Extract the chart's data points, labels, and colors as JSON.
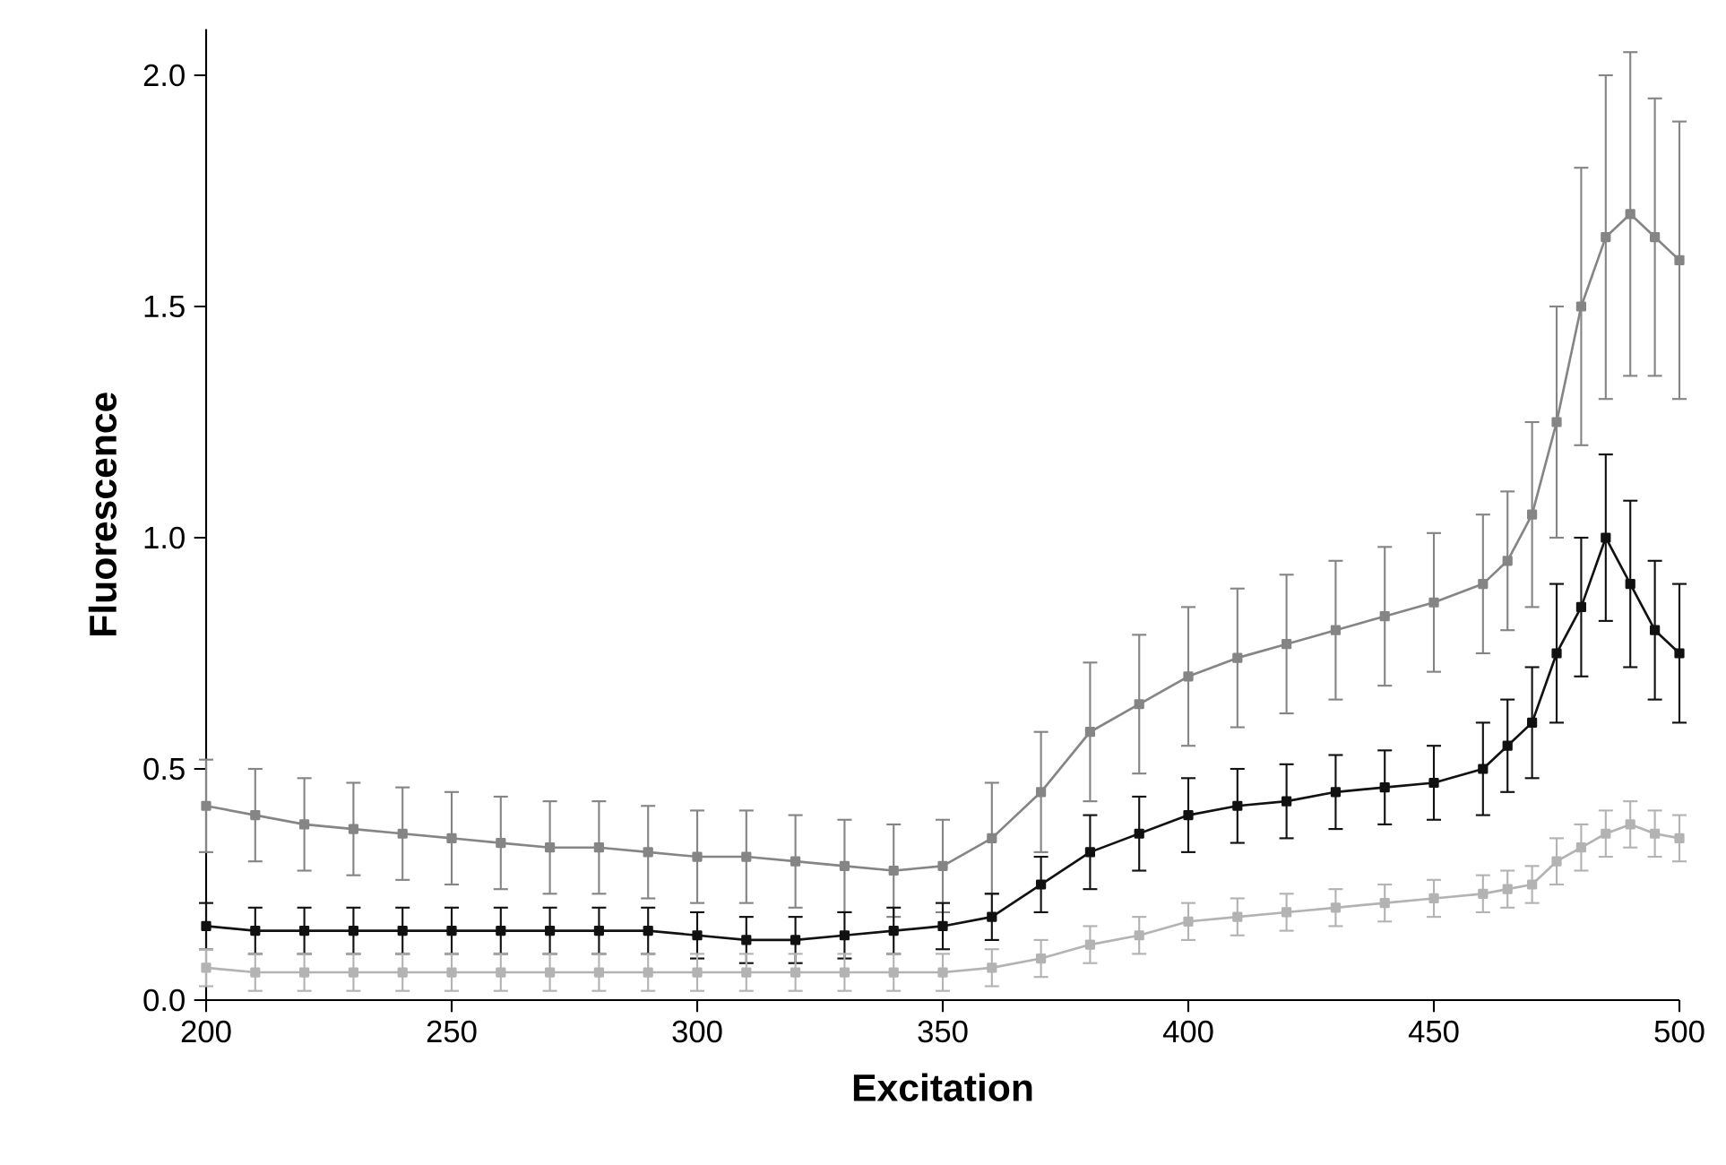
{
  "chart_data": {
    "type": "line",
    "xlabel": "Excitation",
    "ylabel": "Fluorescence",
    "xlim": [
      200,
      500
    ],
    "ylim": [
      0,
      2.1
    ],
    "xticks": [
      200,
      250,
      300,
      350,
      400,
      450,
      500
    ],
    "yticks": [
      {
        "value": 0,
        "label": "0.0"
      },
      0.5,
      {
        "value": 1,
        "label": "1.0"
      },
      1.5,
      {
        "value": 2,
        "label": "2.0"
      }
    ],
    "grid": false,
    "legend": false,
    "marker": "square",
    "line_style": "solid",
    "x": [
      200,
      210,
      220,
      230,
      240,
      250,
      260,
      270,
      280,
      290,
      300,
      310,
      320,
      330,
      340,
      350,
      360,
      370,
      380,
      390,
      400,
      410,
      420,
      430,
      440,
      450,
      460,
      465,
      470,
      475,
      480,
      485,
      490,
      495,
      500
    ],
    "series": [
      {
        "color": "#858585",
        "values": [
          0.42,
          0.4,
          0.38,
          0.37,
          0.36,
          0.35,
          0.34,
          0.33,
          0.33,
          0.32,
          0.31,
          0.31,
          0.3,
          0.29,
          0.28,
          0.29,
          0.35,
          0.45,
          0.58,
          0.64,
          0.7,
          0.74,
          0.77,
          0.8,
          0.83,
          0.86,
          0.9,
          0.95,
          1.05,
          1.25,
          1.5,
          1.65,
          1.7,
          1.65,
          1.6
        ],
        "errors": [
          0.1,
          0.1,
          0.1,
          0.1,
          0.1,
          0.1,
          0.1,
          0.1,
          0.1,
          0.1,
          0.1,
          0.1,
          0.1,
          0.1,
          0.1,
          0.1,
          0.12,
          0.13,
          0.15,
          0.15,
          0.15,
          0.15,
          0.15,
          0.15,
          0.15,
          0.15,
          0.15,
          0.15,
          0.2,
          0.25,
          0.3,
          0.35,
          0.35,
          0.3,
          0.3
        ]
      },
      {
        "color": "#111111",
        "values": [
          0.16,
          0.15,
          0.15,
          0.15,
          0.15,
          0.15,
          0.15,
          0.15,
          0.15,
          0.15,
          0.14,
          0.13,
          0.13,
          0.14,
          0.15,
          0.16,
          0.18,
          0.25,
          0.32,
          0.36,
          0.4,
          0.42,
          0.43,
          0.45,
          0.46,
          0.47,
          0.5,
          0.55,
          0.6,
          0.75,
          0.85,
          1.0,
          0.9,
          0.8,
          0.75
        ],
        "errors": [
          0.05,
          0.05,
          0.05,
          0.05,
          0.05,
          0.05,
          0.05,
          0.05,
          0.05,
          0.05,
          0.05,
          0.05,
          0.05,
          0.05,
          0.05,
          0.05,
          0.05,
          0.06,
          0.08,
          0.08,
          0.08,
          0.08,
          0.08,
          0.08,
          0.08,
          0.08,
          0.1,
          0.1,
          0.12,
          0.15,
          0.15,
          0.18,
          0.18,
          0.15,
          0.15
        ]
      },
      {
        "color": "#b3b3b3",
        "values": [
          0.07,
          0.06,
          0.06,
          0.06,
          0.06,
          0.06,
          0.06,
          0.06,
          0.06,
          0.06,
          0.06,
          0.06,
          0.06,
          0.06,
          0.06,
          0.06,
          0.07,
          0.09,
          0.12,
          0.14,
          0.17,
          0.18,
          0.19,
          0.2,
          0.21,
          0.22,
          0.23,
          0.24,
          0.25,
          0.3,
          0.33,
          0.36,
          0.38,
          0.36,
          0.35
        ],
        "errors": [
          0.04,
          0.04,
          0.04,
          0.04,
          0.04,
          0.04,
          0.04,
          0.04,
          0.04,
          0.04,
          0.04,
          0.04,
          0.04,
          0.04,
          0.04,
          0.04,
          0.04,
          0.04,
          0.04,
          0.04,
          0.04,
          0.04,
          0.04,
          0.04,
          0.04,
          0.04,
          0.04,
          0.04,
          0.04,
          0.05,
          0.05,
          0.05,
          0.05,
          0.05,
          0.05
        ]
      }
    ]
  }
}
